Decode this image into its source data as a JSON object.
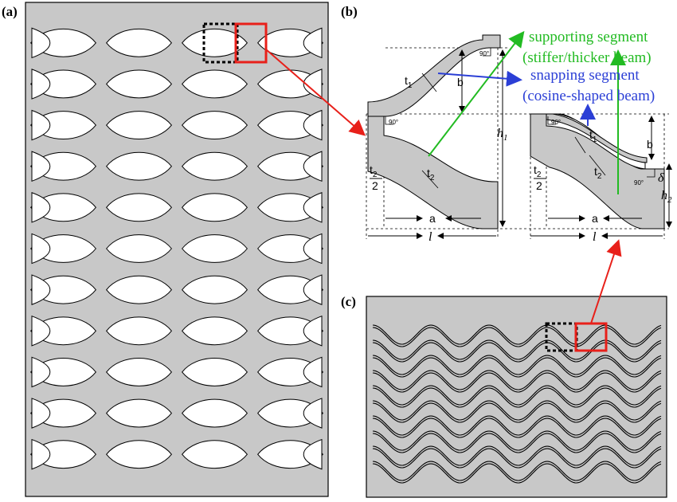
{
  "panels": {
    "a": {
      "label": "(a)"
    },
    "b": {
      "label": "(b)"
    },
    "c": {
      "label": "(c)"
    }
  },
  "annotations": {
    "supporting_line1": "supporting segment",
    "supporting_line2": "(stiffer/thicker beam)",
    "snapping_line1": "snapping segment",
    "snapping_line2": "(cosine-shaped beam)"
  },
  "dimensions": {
    "t1": "t",
    "t1_sub": "1",
    "t2": "t",
    "t2_sub": "2",
    "half_num": "t",
    "half_num_sub": "2",
    "half_den": "2",
    "b": "b",
    "a": "a",
    "l": "l",
    "h1": "h",
    "h1_sub": "1",
    "h2": "h",
    "h2_sub": "2",
    "delta": "δ",
    "angle": "90°"
  },
  "colors": {
    "material": "#c8c8c8",
    "outline": "#000000",
    "highlight": "#e8201a",
    "supporting": "#22bb22",
    "snapping": "#2b3fd6"
  }
}
